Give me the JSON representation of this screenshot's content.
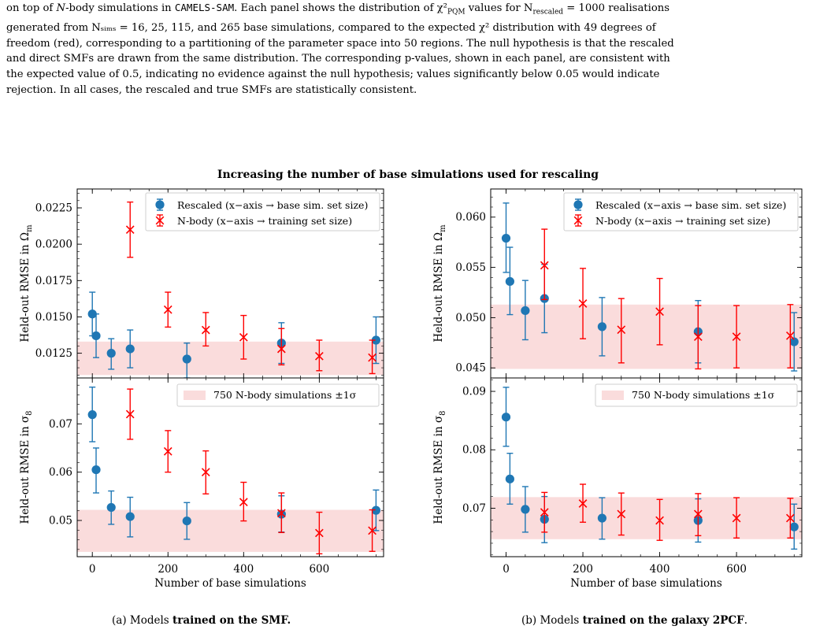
{
  "caption": {
    "line1_a": "on top of ",
    "line1_b": "N",
    "line1_c": "-body simulations in ",
    "line1_mono": "CAMELS-SAM",
    "line1_d": ". Each panel shows the distribution of χ²",
    "line1_sub1": "PQM",
    "line1_e": " values for N",
    "line1_sub2": "rescaled",
    "line1_f": " = 1000 realisations",
    "line2": "generated from Nₛᵢₘₛ = 16, 25, 115, and 265 base simulations, compared to the expected χ² distribution with 49 degrees of",
    "line3": "freedom (red), corresponding to a partitioning of the parameter space into 50 regions. The null hypothesis is that the rescaled",
    "line4": "and direct SMFs are drawn from the same distribution. The corresponding p-values, shown in each panel, are consistent with",
    "line5": "the expected value of 0.5, indicating no evidence against the null hypothesis; values significantly below 0.05 would indicate",
    "line6": "rejection. In all cases, the rescaled and true SMFs are statistically consistent."
  },
  "suptitle": "Increasing the number of base simulations used for rescaling",
  "subcaption_a": {
    "prefix": "(a) Models ",
    "bold": "trained on the SMF.",
    "suffix": ""
  },
  "subcaption_b": {
    "prefix": "(b) Models ",
    "bold": "trained on the galaxy 2PCF",
    "suffix": "."
  },
  "colors": {
    "rescaled": "#1f77b4",
    "nbody": "#ff0000",
    "band": "#fadcdc"
  },
  "legend": {
    "rescaled": "Rescaled (x−axis → base sim. set size)",
    "nbody": "N-body (x−axis → training set size)",
    "band": "750 N-body simulations ±1σ"
  },
  "chart_data": [
    {
      "id": "a-top",
      "type": "scatter",
      "xlabel": "",
      "ylabel": "Held-out RMSE in Ωm",
      "xlim": [
        -40,
        770
      ],
      "ylim": [
        0.0108,
        0.0238
      ],
      "yticks": [
        0.0125,
        0.015,
        0.0175,
        0.02,
        0.0225
      ],
      "yticklabels": [
        "0.0125",
        "0.0150",
        "0.0175",
        "0.0200",
        "0.0225"
      ],
      "xticks": [
        0,
        200,
        400,
        600
      ],
      "xticklabels": [],
      "band": [
        0.011,
        0.0133
      ],
      "series": [
        {
          "name": "Rescaled (x−axis → base sim. set size)",
          "marker": "circle",
          "points": [
            {
              "x": 0,
              "y": 0.0152,
              "lo": 0.0137,
              "hi": 0.0167
            },
            {
              "x": 10,
              "y": 0.0137,
              "lo": 0.0122,
              "hi": 0.0152
            },
            {
              "x": 50,
              "y": 0.0125,
              "lo": 0.0114,
              "hi": 0.0135
            },
            {
              "x": 100,
              "y": 0.0128,
              "lo": 0.0115,
              "hi": 0.0141
            },
            {
              "x": 250,
              "y": 0.0121,
              "lo": 0.0108,
              "hi": 0.0132
            },
            {
              "x": 500,
              "y": 0.0132,
              "lo": 0.0118,
              "hi": 0.0146
            },
            {
              "x": 750,
              "y": 0.0134,
              "lo": 0.0118,
              "hi": 0.015
            }
          ]
        },
        {
          "name": "N-body (x−axis → training set size)",
          "marker": "x",
          "points": [
            {
              "x": 100,
              "y": 0.021,
              "lo": 0.0191,
              "hi": 0.0229
            },
            {
              "x": 200,
              "y": 0.0155,
              "lo": 0.0143,
              "hi": 0.0167
            },
            {
              "x": 300,
              "y": 0.0141,
              "lo": 0.013,
              "hi": 0.0153
            },
            {
              "x": 400,
              "y": 0.0136,
              "lo": 0.0121,
              "hi": 0.0151
            },
            {
              "x": 500,
              "y": 0.0128,
              "lo": 0.0117,
              "hi": 0.0142
            },
            {
              "x": 600,
              "y": 0.0123,
              "lo": 0.0113,
              "hi": 0.0134
            },
            {
              "x": 740,
              "y": 0.0122,
              "lo": 0.0111,
              "hi": 0.0134
            }
          ]
        }
      ]
    },
    {
      "id": "a-bottom",
      "type": "scatter",
      "xlabel": "Number of base simulations",
      "ylabel": "Held-out RMSE in σ8",
      "xlim": [
        -40,
        770
      ],
      "ylim": [
        0.0425,
        0.0795
      ],
      "yticks": [
        0.05,
        0.06,
        0.07
      ],
      "yticklabels": [
        "0.05",
        "0.06",
        "0.07"
      ],
      "xticks": [
        0,
        200,
        400,
        600
      ],
      "xticklabels": [
        "0",
        "200",
        "400",
        "600"
      ],
      "band": [
        0.0435,
        0.0522
      ],
      "series": [
        {
          "name": "Rescaled (x−axis → base sim. set size)",
          "marker": "circle",
          "points": [
            {
              "x": 0,
              "y": 0.0719,
              "lo": 0.0663,
              "hi": 0.0776
            },
            {
              "x": 10,
              "y": 0.0605,
              "lo": 0.0557,
              "hi": 0.065
            },
            {
              "x": 50,
              "y": 0.0527,
              "lo": 0.0492,
              "hi": 0.0561
            },
            {
              "x": 100,
              "y": 0.0508,
              "lo": 0.0466,
              "hi": 0.0548
            },
            {
              "x": 250,
              "y": 0.0499,
              "lo": 0.0461,
              "hi": 0.0537
            },
            {
              "x": 500,
              "y": 0.0513,
              "lo": 0.0476,
              "hi": 0.0551
            },
            {
              "x": 750,
              "y": 0.0521,
              "lo": 0.0479,
              "hi": 0.0563
            }
          ]
        },
        {
          "name": "N-body (x−axis → training set size)",
          "marker": "x",
          "points": [
            {
              "x": 100,
              "y": 0.072,
              "lo": 0.0668,
              "hi": 0.0772
            },
            {
              "x": 200,
              "y": 0.0643,
              "lo": 0.06,
              "hi": 0.0686
            },
            {
              "x": 300,
              "y": 0.06,
              "lo": 0.0555,
              "hi": 0.0644
            },
            {
              "x": 400,
              "y": 0.0538,
              "lo": 0.0499,
              "hi": 0.0579
            },
            {
              "x": 500,
              "y": 0.0515,
              "lo": 0.0475,
              "hi": 0.0557
            },
            {
              "x": 600,
              "y": 0.0474,
              "lo": 0.0431,
              "hi": 0.0517
            },
            {
              "x": 740,
              "y": 0.0479,
              "lo": 0.0436,
              "hi": 0.0522
            }
          ]
        }
      ]
    },
    {
      "id": "b-top",
      "type": "scatter",
      "xlabel": "",
      "ylabel": "Held-out RMSE in Ωm",
      "xlim": [
        -40,
        770
      ],
      "ylim": [
        0.044,
        0.0628
      ],
      "yticks": [
        0.045,
        0.05,
        0.055,
        0.06
      ],
      "yticklabels": [
        "0.045",
        "0.050",
        "0.055",
        "0.060"
      ],
      "xticks": [
        0,
        200,
        400,
        600
      ],
      "xticklabels": [],
      "band": [
        0.0449,
        0.0513
      ],
      "series": [
        {
          "name": "Rescaled (x−axis → base sim. set size)",
          "marker": "circle",
          "points": [
            {
              "x": 0,
              "y": 0.0579,
              "lo": 0.0545,
              "hi": 0.0614
            },
            {
              "x": 10,
              "y": 0.0536,
              "lo": 0.0503,
              "hi": 0.057
            },
            {
              "x": 50,
              "y": 0.0507,
              "lo": 0.0478,
              "hi": 0.0537
            },
            {
              "x": 100,
              "y": 0.0519,
              "lo": 0.0485,
              "hi": 0.0553
            },
            {
              "x": 250,
              "y": 0.0491,
              "lo": 0.0462,
              "hi": 0.052
            },
            {
              "x": 500,
              "y": 0.0486,
              "lo": 0.0455,
              "hi": 0.0517
            },
            {
              "x": 750,
              "y": 0.0476,
              "lo": 0.0447,
              "hi": 0.0505
            }
          ]
        },
        {
          "name": "N-body (x−axis → training set size)",
          "marker": "x",
          "points": [
            {
              "x": 100,
              "y": 0.0552,
              "lo": 0.0518,
              "hi": 0.0588
            },
            {
              "x": 200,
              "y": 0.0514,
              "lo": 0.0479,
              "hi": 0.0549
            },
            {
              "x": 300,
              "y": 0.0488,
              "lo": 0.0455,
              "hi": 0.0519
            },
            {
              "x": 400,
              "y": 0.0506,
              "lo": 0.0473,
              "hi": 0.0539
            },
            {
              "x": 500,
              "y": 0.0481,
              "lo": 0.0449,
              "hi": 0.0512
            },
            {
              "x": 600,
              "y": 0.0481,
              "lo": 0.045,
              "hi": 0.0512
            },
            {
              "x": 740,
              "y": 0.0482,
              "lo": 0.045,
              "hi": 0.0513
            }
          ]
        }
      ]
    },
    {
      "id": "b-bottom",
      "type": "scatter",
      "xlabel": "Number of base simulations",
      "ylabel": "Held-out RMSE in σ8",
      "xlim": [
        -40,
        770
      ],
      "ylim": [
        0.0617,
        0.0923
      ],
      "yticks": [
        0.07,
        0.08,
        0.09
      ],
      "yticklabels": [
        "0.07",
        "0.08",
        "0.09"
      ],
      "xticks": [
        0,
        200,
        400,
        600
      ],
      "xticklabels": [
        "0",
        "200",
        "400",
        "600"
      ],
      "band": [
        0.0647,
        0.0719
      ],
      "series": [
        {
          "name": "Rescaled (x−axis → base sim. set size)",
          "marker": "circle",
          "points": [
            {
              "x": 0,
              "y": 0.0856,
              "lo": 0.0806,
              "hi": 0.0907
            },
            {
              "x": 10,
              "y": 0.075,
              "lo": 0.0707,
              "hi": 0.0794
            },
            {
              "x": 50,
              "y": 0.0698,
              "lo": 0.0659,
              "hi": 0.0737
            },
            {
              "x": 100,
              "y": 0.0681,
              "lo": 0.0641,
              "hi": 0.072
            },
            {
              "x": 250,
              "y": 0.0683,
              "lo": 0.0647,
              "hi": 0.0718
            },
            {
              "x": 500,
              "y": 0.0679,
              "lo": 0.0642,
              "hi": 0.0716
            },
            {
              "x": 750,
              "y": 0.0668,
              "lo": 0.063,
              "hi": 0.0707
            }
          ]
        },
        {
          "name": "N-body (x−axis → training set size)",
          "marker": "x",
          "points": [
            {
              "x": 100,
              "y": 0.0693,
              "lo": 0.0659,
              "hi": 0.0727
            },
            {
              "x": 200,
              "y": 0.0708,
              "lo": 0.0676,
              "hi": 0.0741
            },
            {
              "x": 300,
              "y": 0.069,
              "lo": 0.0654,
              "hi": 0.0726
            },
            {
              "x": 400,
              "y": 0.0679,
              "lo": 0.0645,
              "hi": 0.0715
            },
            {
              "x": 500,
              "y": 0.069,
              "lo": 0.0653,
              "hi": 0.0725
            },
            {
              "x": 600,
              "y": 0.0683,
              "lo": 0.0649,
              "hi": 0.0718
            },
            {
              "x": 740,
              "y": 0.0683,
              "lo": 0.0649,
              "hi": 0.0717
            }
          ]
        }
      ]
    }
  ]
}
